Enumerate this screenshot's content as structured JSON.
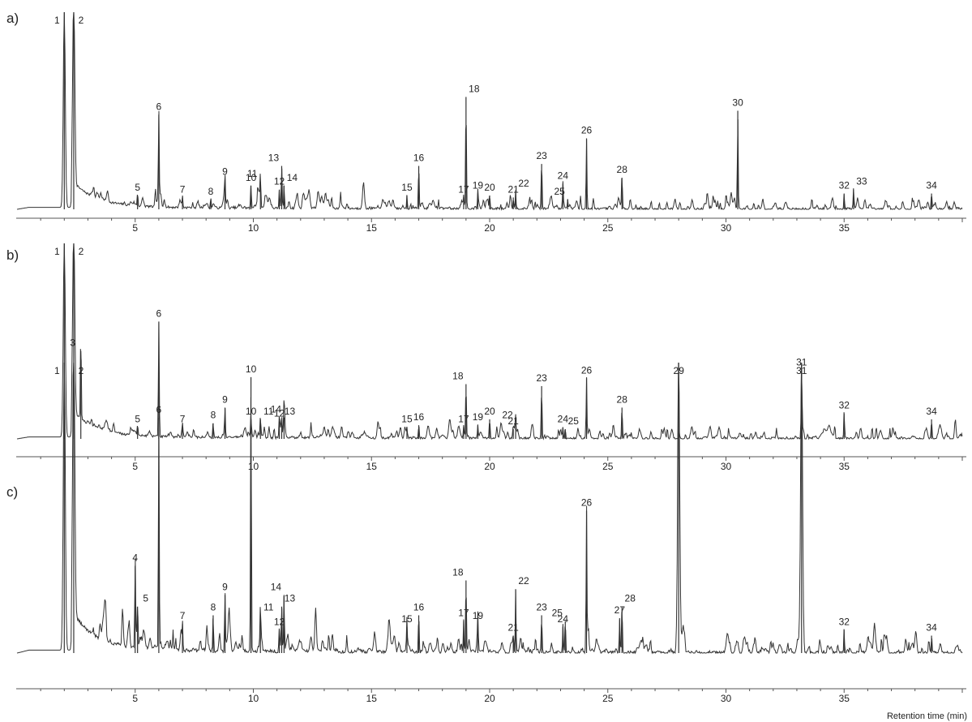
{
  "figure": {
    "x_axis_title": "Retention time (min)",
    "x_ticks": [
      5,
      10,
      15,
      20,
      25,
      30,
      35
    ]
  },
  "chart_data": [
    {
      "type": "line",
      "panel_label": "a)",
      "x_range": [
        0,
        40
      ],
      "peaks": [
        {
          "label": "1",
          "x": 2.0,
          "h": 1.0
        },
        {
          "label": "2",
          "x": 2.4,
          "h": 1.0
        },
        {
          "label": "5",
          "x": 5.1,
          "h": 0.07
        },
        {
          "label": "6",
          "x": 6.0,
          "h": 0.48
        },
        {
          "label": "7",
          "x": 7.0,
          "h": 0.06
        },
        {
          "label": "8",
          "x": 8.2,
          "h": 0.05
        },
        {
          "label": "9",
          "x": 8.8,
          "h": 0.15
        },
        {
          "label": "10",
          "x": 9.9,
          "h": 0.12
        },
        {
          "label": "11",
          "x": 10.3,
          "h": 0.14
        },
        {
          "label": "12",
          "x": 11.1,
          "h": 0.1
        },
        {
          "label": "13",
          "x": 11.2,
          "h": 0.22
        },
        {
          "label": "14",
          "x": 11.3,
          "h": 0.12
        },
        {
          "label": "15",
          "x": 16.5,
          "h": 0.07
        },
        {
          "label": "16",
          "x": 17.0,
          "h": 0.22
        },
        {
          "label": "17",
          "x": 18.9,
          "h": 0.06
        },
        {
          "label": "18",
          "x": 19.0,
          "h": 0.57
        },
        {
          "label": "19",
          "x": 19.5,
          "h": 0.08
        },
        {
          "label": "20",
          "x": 20.0,
          "h": 0.07
        },
        {
          "label": "21",
          "x": 21.0,
          "h": 0.06
        },
        {
          "label": "22",
          "x": 21.1,
          "h": 0.09
        },
        {
          "label": "23",
          "x": 22.2,
          "h": 0.23
        },
        {
          "label": "24",
          "x": 23.1,
          "h": 0.13
        },
        {
          "label": "25",
          "x": 23.3,
          "h": 0.05
        },
        {
          "label": "26",
          "x": 24.1,
          "h": 0.36
        },
        {
          "label": "28",
          "x": 25.6,
          "h": 0.16
        },
        {
          "label": "30",
          "x": 30.5,
          "h": 0.5
        },
        {
          "label": "32",
          "x": 35.0,
          "h": 0.08
        },
        {
          "label": "33",
          "x": 35.4,
          "h": 0.1
        },
        {
          "label": "34",
          "x": 38.7,
          "h": 0.08
        }
      ]
    },
    {
      "type": "line",
      "panel_label": "b)",
      "x_range": [
        0,
        40
      ],
      "peaks": [
        {
          "label": "1",
          "x": 2.0,
          "h": 1.0
        },
        {
          "label": "2",
          "x": 2.4,
          "h": 1.0
        },
        {
          "label": "3",
          "x": 2.7,
          "h": 0.45
        },
        {
          "label": "5",
          "x": 5.1,
          "h": 0.06
        },
        {
          "label": "6",
          "x": 6.0,
          "h": 0.6
        },
        {
          "label": "7",
          "x": 7.0,
          "h": 0.06
        },
        {
          "label": "8",
          "x": 8.3,
          "h": 0.08
        },
        {
          "label": "9",
          "x": 8.8,
          "h": 0.16
        },
        {
          "label": "10",
          "x": 9.9,
          "h": 0.1
        },
        {
          "label": "11",
          "x": 10.3,
          "h": 0.1
        },
        {
          "label": "12",
          "x": 11.1,
          "h": 0.09
        },
        {
          "label": "13",
          "x": 11.2,
          "h": 0.1
        },
        {
          "label": "14",
          "x": 11.3,
          "h": 0.11
        },
        {
          "label": "15",
          "x": 16.5,
          "h": 0.06
        },
        {
          "label": "16",
          "x": 17.0,
          "h": 0.07
        },
        {
          "label": "17",
          "x": 18.9,
          "h": 0.06
        },
        {
          "label": "18",
          "x": 19.0,
          "h": 0.28
        },
        {
          "label": "19",
          "x": 19.5,
          "h": 0.07
        },
        {
          "label": "20",
          "x": 20.0,
          "h": 0.1
        },
        {
          "label": "21",
          "x": 21.0,
          "h": 0.05
        },
        {
          "label": "22",
          "x": 21.1,
          "h": 0.08
        },
        {
          "label": "23",
          "x": 22.2,
          "h": 0.27
        },
        {
          "label": "24",
          "x": 23.1,
          "h": 0.06
        },
        {
          "label": "25",
          "x": 23.2,
          "h": 0.05
        },
        {
          "label": "26",
          "x": 24.1,
          "h": 0.31
        },
        {
          "label": "28",
          "x": 25.6,
          "h": 0.16
        },
        {
          "label": "31",
          "x": 33.2,
          "h": 0.35
        },
        {
          "label": "32",
          "x": 35.0,
          "h": 0.13
        },
        {
          "label": "34",
          "x": 38.7,
          "h": 0.1
        }
      ]
    },
    {
      "type": "line",
      "panel_label": "c)",
      "x_range": [
        0,
        40
      ],
      "peaks": [
        {
          "label": "1",
          "x": 2.0,
          "h": 1.0
        },
        {
          "label": "2",
          "x": 2.4,
          "h": 1.0
        },
        {
          "label": "4",
          "x": 5.0,
          "h": 0.3
        },
        {
          "label": "5",
          "x": 5.1,
          "h": 0.16
        },
        {
          "label": "6",
          "x": 6.0,
          "h": 0.81
        },
        {
          "label": "7",
          "x": 7.0,
          "h": 0.1
        },
        {
          "label": "8",
          "x": 8.3,
          "h": 0.13
        },
        {
          "label": "9",
          "x": 8.8,
          "h": 0.2
        },
        {
          "label": "10",
          "x": 9.9,
          "h": 0.95
        },
        {
          "label": "11",
          "x": 10.3,
          "h": 0.13
        },
        {
          "label": "12",
          "x": 11.1,
          "h": 0.08
        },
        {
          "label": "13",
          "x": 11.2,
          "h": 0.16
        },
        {
          "label": "14",
          "x": 11.3,
          "h": 0.2
        },
        {
          "label": "15",
          "x": 16.5,
          "h": 0.09
        },
        {
          "label": "16",
          "x": 17.0,
          "h": 0.13
        },
        {
          "label": "17",
          "x": 18.9,
          "h": 0.11
        },
        {
          "label": "18",
          "x": 19.0,
          "h": 0.25
        },
        {
          "label": "19",
          "x": 19.5,
          "h": 0.1
        },
        {
          "label": "21",
          "x": 21.0,
          "h": 0.06
        },
        {
          "label": "22",
          "x": 21.1,
          "h": 0.22
        },
        {
          "label": "23",
          "x": 22.2,
          "h": 0.13
        },
        {
          "label": "24",
          "x": 23.1,
          "h": 0.09
        },
        {
          "label": "25",
          "x": 23.2,
          "h": 0.11
        },
        {
          "label": "26",
          "x": 24.1,
          "h": 0.49
        },
        {
          "label": "27",
          "x": 25.5,
          "h": 0.12
        },
        {
          "label": "28",
          "x": 25.6,
          "h": 0.16
        },
        {
          "label": "29",
          "x": 28.0,
          "h": 1.0
        },
        {
          "label": "31",
          "x": 33.2,
          "h": 1.0
        },
        {
          "label": "32",
          "x": 35.0,
          "h": 0.08
        },
        {
          "label": "34",
          "x": 38.7,
          "h": 0.06
        }
      ]
    }
  ]
}
